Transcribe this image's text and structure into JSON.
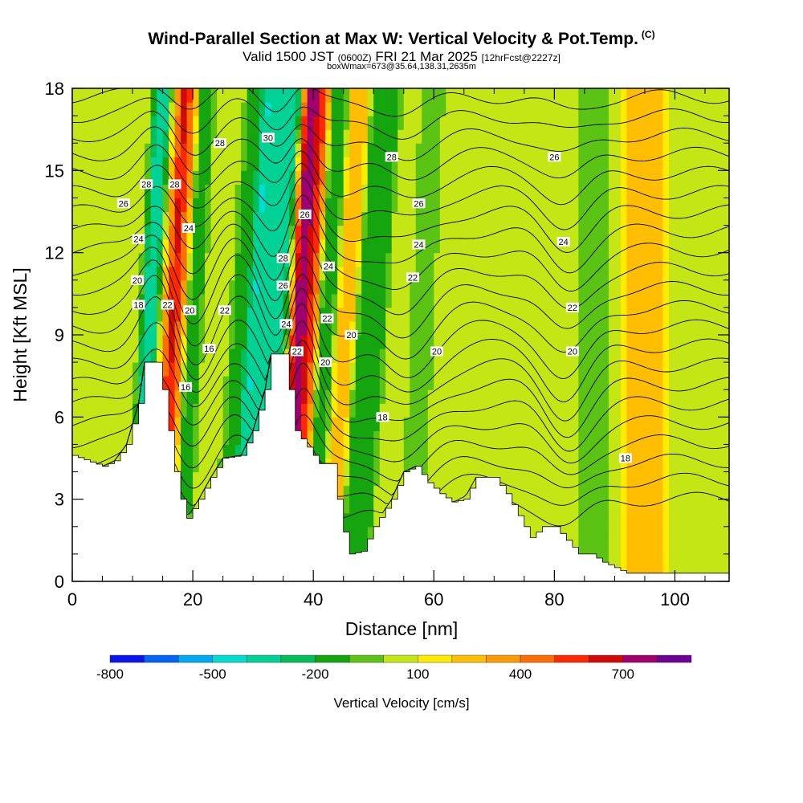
{
  "header": {
    "title": "Wind-Parallel Section at Max W: Vertical Velocity & Pot.Temp.",
    "copyright": "(C)",
    "valid_prefix": "Valid 1500 JST",
    "valid_utc": "(0600Z)",
    "valid_date": "FRI 21 Mar 2025",
    "forecast": "[12hrFcst@2227z]",
    "box_info": "boxWmax=673@35.64,138.31,2635m"
  },
  "chart_data": {
    "type": "heatmap",
    "xlabel": "Distance [nm]",
    "ylabel": "Height [Kft MSL]",
    "xlim": [
      0,
      109
    ],
    "ylim": [
      0,
      18
    ],
    "x_ticks": [
      0,
      20,
      40,
      60,
      80,
      100
    ],
    "y_ticks": [
      0,
      3,
      6,
      9,
      12,
      15,
      18
    ],
    "colorbar": {
      "label": "Vertical Velocity [cm/s]",
      "tick_labels": [
        "-800",
        "-500",
        "-200",
        "100",
        "400",
        "700"
      ],
      "tick_values": [
        -800,
        -500,
        -200,
        100,
        400,
        700
      ],
      "bins": [
        {
          "from": -800,
          "to": -700,
          "color": "#0a14f0"
        },
        {
          "from": -700,
          "to": -600,
          "color": "#0064f5"
        },
        {
          "from": -600,
          "to": -500,
          "color": "#00aaf0"
        },
        {
          "from": -500,
          "to": -400,
          "color": "#00dcd2"
        },
        {
          "from": -400,
          "to": -300,
          "color": "#00d296"
        },
        {
          "from": -300,
          "to": -200,
          "color": "#00be5a"
        },
        {
          "from": -200,
          "to": -100,
          "color": "#14a50f"
        },
        {
          "from": -100,
          "to": 0,
          "color": "#5ac314"
        },
        {
          "from": 0,
          "to": 100,
          "color": "#c3e614"
        },
        {
          "from": 100,
          "to": 200,
          "color": "#ffeb00"
        },
        {
          "from": 200,
          "to": 300,
          "color": "#ffbe00"
        },
        {
          "from": 300,
          "to": 400,
          "color": "#ff9b00"
        },
        {
          "from": 400,
          "to": 500,
          "color": "#ff6e00"
        },
        {
          "from": 500,
          "to": 600,
          "color": "#ff2800"
        },
        {
          "from": 600,
          "to": 700,
          "color": "#d20a0a"
        },
        {
          "from": 700,
          "to": 800,
          "color": "#a0006e"
        },
        {
          "from": 800,
          "to": 900,
          "color": "#6e0096"
        }
      ]
    },
    "terrain_kft": [
      [
        0,
        4.6
      ],
      [
        5,
        4.2
      ],
      [
        7,
        4.4
      ],
      [
        9,
        5.0
      ],
      [
        11,
        6.5
      ],
      [
        12,
        8.0
      ],
      [
        14,
        8.0
      ],
      [
        15,
        7.0
      ],
      [
        16,
        5.5
      ],
      [
        17,
        4.0
      ],
      [
        18,
        3.0
      ],
      [
        19,
        2.3
      ],
      [
        21,
        3.0
      ],
      [
        23,
        3.8
      ],
      [
        25,
        4.5
      ],
      [
        28,
        4.6
      ],
      [
        30,
        5.5
      ],
      [
        32,
        7.0
      ],
      [
        33,
        8.3
      ],
      [
        35,
        8.3
      ],
      [
        36,
        7.0
      ],
      [
        37,
        5.5
      ],
      [
        39,
        4.9
      ],
      [
        41,
        4.3
      ],
      [
        43,
        4.3
      ],
      [
        44,
        3.0
      ],
      [
        45,
        1.8
      ],
      [
        46,
        1.0
      ],
      [
        48,
        1.1
      ],
      [
        50,
        2.0
      ],
      [
        53,
        3.0
      ],
      [
        55,
        4.0
      ],
      [
        57,
        4.2
      ],
      [
        59,
        3.6
      ],
      [
        61,
        3.2
      ],
      [
        63,
        2.9
      ],
      [
        65,
        3.0
      ],
      [
        67,
        3.8
      ],
      [
        70,
        3.8
      ],
      [
        72,
        3.2
      ],
      [
        74,
        2.4
      ],
      [
        76,
        1.6
      ],
      [
        78,
        2.0
      ],
      [
        80,
        2.0
      ],
      [
        82,
        1.5
      ],
      [
        84,
        1.0
      ],
      [
        86,
        1.0
      ],
      [
        88,
        0.7
      ],
      [
        90,
        0.5
      ],
      [
        92,
        0.3
      ],
      [
        109,
        0.3
      ]
    ],
    "theta_levels_kft": [
      3,
      3.7,
      4.4,
      5.1,
      5.8,
      6.5,
      7.2,
      7.9,
      8.6,
      9.3,
      10.0,
      10.7,
      11.4,
      12.1,
      12.8,
      13.5,
      14.2,
      14.9,
      15.6,
      16.3,
      17.0,
      17.7
    ],
    "theta_deformations": [
      {
        "x": 14,
        "amp_kft": 1.8,
        "width_nm": 4
      },
      {
        "x": 20,
        "amp_kft": -1.5,
        "width_nm": 4
      },
      {
        "x": 27,
        "amp_kft": 1.2,
        "width_nm": 4
      },
      {
        "x": 34,
        "amp_kft": -1.5,
        "width_nm": 3
      },
      {
        "x": 38,
        "amp_kft": 2.0,
        "width_nm": 3
      },
      {
        "x": 45,
        "amp_kft": -1.2,
        "width_nm": 5
      },
      {
        "x": 55,
        "amp_kft": -1.8,
        "width_nm": 6
      },
      {
        "x": 82,
        "amp_kft": -2.0,
        "width_nm": 5
      }
    ],
    "velocity_bands": [
      {
        "x0": 12,
        "x1": 15,
        "w": -350,
        "tilt": 0.25
      },
      {
        "x0": 15,
        "x1": 18,
        "w": 650,
        "tilt": 0.25
      },
      {
        "x0": 18,
        "x1": 20.5,
        "w": -200,
        "tilt": 0.25
      },
      {
        "x0": 27,
        "x1": 29,
        "w": -150,
        "tilt": 0.3
      },
      {
        "x0": 30,
        "x1": 34.5,
        "w": -350,
        "tilt": 0.3
      },
      {
        "x0": 37,
        "x1": 40,
        "w": 700,
        "tilt": 0.25
      },
      {
        "x0": 40,
        "x1": 43,
        "w": -200,
        "tilt": 0.25
      },
      {
        "x0": 44,
        "x1": 46,
        "w": 250,
        "tilt": 0.3
      },
      {
        "x0": 48,
        "x1": 51,
        "w": -200,
        "tilt": 0.3
      },
      {
        "x0": 57,
        "x1": 59,
        "w": -80,
        "tilt": 0.2
      },
      {
        "x0": 85,
        "x1": 88,
        "w": -50,
        "tilt": 0.0
      },
      {
        "x0": 92,
        "x1": 98,
        "w": 200,
        "tilt": 0.0
      }
    ],
    "contour_labels": [
      {
        "text": "28",
        "x": 24.5,
        "y": 16.0
      },
      {
        "text": "30",
        "x": 32.5,
        "y": 16.2
      },
      {
        "text": "28",
        "x": 53,
        "y": 15.5
      },
      {
        "text": "26",
        "x": 80,
        "y": 15.5
      },
      {
        "text": "28",
        "x": 12.3,
        "y": 14.5
      },
      {
        "text": "28",
        "x": 17,
        "y": 14.5
      },
      {
        "text": "26",
        "x": 8.5,
        "y": 13.8
      },
      {
        "text": "26",
        "x": 57.5,
        "y": 13.8
      },
      {
        "text": "24",
        "x": 11,
        "y": 12.5
      },
      {
        "text": "24",
        "x": 19.3,
        "y": 12.9
      },
      {
        "text": "26",
        "x": 38.6,
        "y": 13.4
      },
      {
        "text": "24",
        "x": 57.5,
        "y": 12.3
      },
      {
        "text": "24",
        "x": 81.5,
        "y": 12.4
      },
      {
        "text": "28",
        "x": 35,
        "y": 11.8
      },
      {
        "text": "24",
        "x": 42.5,
        "y": 11.5
      },
      {
        "text": "22",
        "x": 56.5,
        "y": 11.1
      },
      {
        "text": "20",
        "x": 10.8,
        "y": 11.0
      },
      {
        "text": "26",
        "x": 35,
        "y": 10.8
      },
      {
        "text": "18",
        "x": 11,
        "y": 10.1
      },
      {
        "text": "22",
        "x": 15.8,
        "y": 10.1
      },
      {
        "text": "20",
        "x": 19.5,
        "y": 9.9
      },
      {
        "text": "22",
        "x": 25.3,
        "y": 9.9
      },
      {
        "text": "22",
        "x": 83,
        "y": 10.0
      },
      {
        "text": "24",
        "x": 35.5,
        "y": 9.4
      },
      {
        "text": "22",
        "x": 42.3,
        "y": 9.6
      },
      {
        "text": "20",
        "x": 46.3,
        "y": 9.0
      },
      {
        "text": "22",
        "x": 37.3,
        "y": 8.4
      },
      {
        "text": "20",
        "x": 42,
        "y": 8.0
      },
      {
        "text": "16",
        "x": 22.7,
        "y": 8.5
      },
      {
        "text": "20",
        "x": 60.5,
        "y": 8.4
      },
      {
        "text": "20",
        "x": 83,
        "y": 8.4
      },
      {
        "text": "16",
        "x": 18.8,
        "y": 7.1
      },
      {
        "text": "18",
        "x": 51.5,
        "y": 6.0
      },
      {
        "text": "18",
        "x": 91.8,
        "y": 4.5
      }
    ]
  }
}
